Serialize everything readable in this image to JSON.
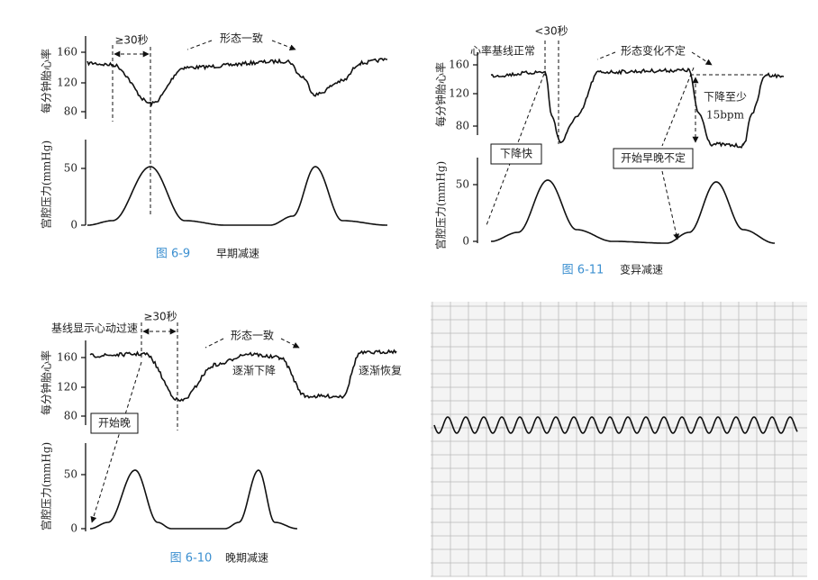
{
  "panels": [
    {
      "caption_number": "图 6-9",
      "caption_title": "早期减速",
      "fhr_label": "每分钟胎心率",
      "pressure_label": "宫腔压力(mmHg)",
      "fhr_ticks": [
        "160",
        "120",
        "80"
      ],
      "pressure_ticks": [
        "50",
        "0"
      ],
      "annotations": [
        "≥30秒",
        "形态一致"
      ]
    },
    {
      "caption_number": "图 6-11",
      "caption_title": "变异减速",
      "fhr_label": "每分钟胎心率",
      "pressure_label": "宫腔压力(mmHg)",
      "fhr_ticks": [
        "160",
        "120",
        "80"
      ],
      "pressure_ticks": [
        "50",
        "0"
      ],
      "annotations": [
        "<30秒",
        "心率基线正常",
        "形态变化不定",
        "下降至少",
        "15bpm",
        "下降快",
        "开始早晚不定"
      ]
    },
    {
      "caption_number": "图 6-10",
      "caption_title": "晚期减速",
      "fhr_label": "每分钟胎心率",
      "pressure_label": "宫腔压力(mmHg)",
      "fhr_ticks": [
        "160",
        "120",
        "80"
      ],
      "pressure_ticks": [
        "50",
        "0"
      ],
      "annotations": [
        "基线显示心动过速",
        "≥30秒",
        "形态一致",
        "逐渐下降",
        "逐渐恢复",
        "开始晚"
      ]
    }
  ]
}
